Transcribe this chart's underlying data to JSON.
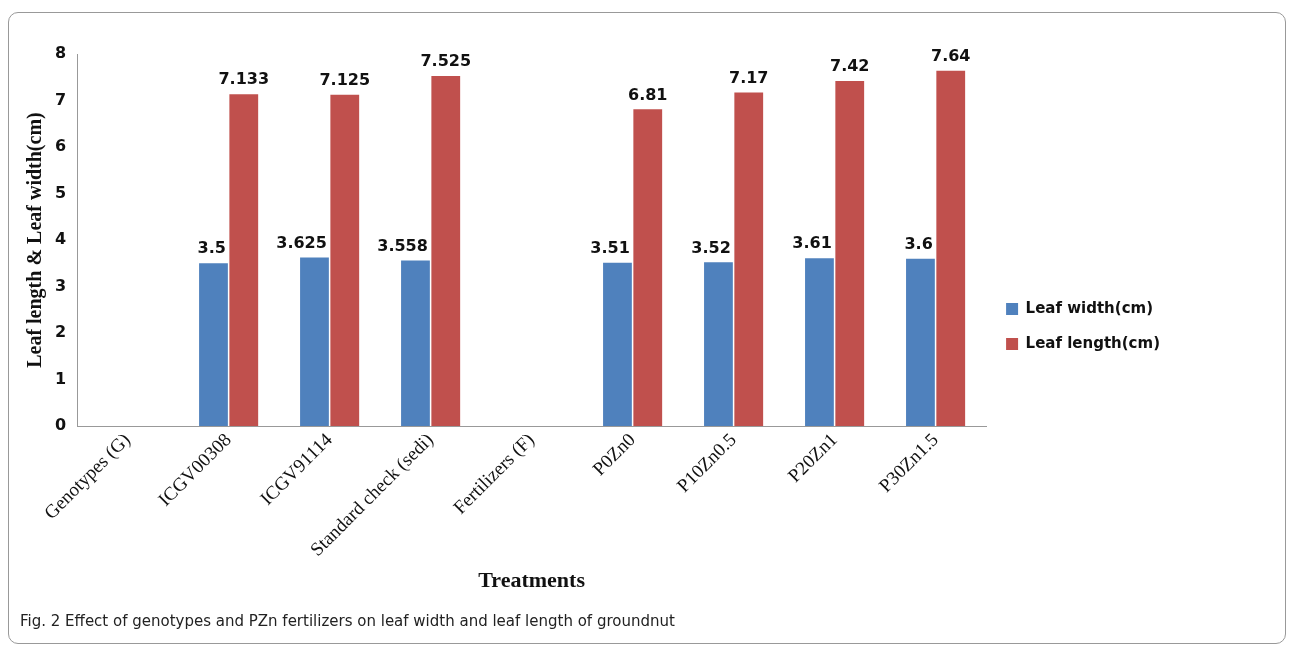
{
  "chart_data": {
    "type": "bar",
    "categories": [
      "Genotypes (G)",
      "ICGV00308",
      "ICGV91114",
      "Standard check (sedi)",
      "Fertilizers (F)",
      "P0Zn0",
      "P10Zn0.5",
      "P20Zn1",
      "P30Zn1.5"
    ],
    "series": [
      {
        "name": "Leaf width(cm)",
        "color": "#4f81bd",
        "values": [
          null,
          3.5,
          3.625,
          3.558,
          null,
          3.51,
          3.52,
          3.61,
          3.6
        ]
      },
      {
        "name": "Leaf length(cm)",
        "color": "#c0504d",
        "values": [
          null,
          7.133,
          7.125,
          7.525,
          null,
          6.81,
          7.17,
          7.42,
          7.64
        ]
      }
    ],
    "xlabel": "Treatments",
    "ylabel": "Leaf length & Leaf width(cm)",
    "ylim": [
      0,
      8
    ],
    "yticks": [
      0,
      1,
      2,
      3,
      4,
      5,
      6,
      7,
      8
    ],
    "grid": false,
    "legend": "right",
    "data_labels": true,
    "annotations": [
      "Fig. 2  Effect of genotypes and PZn fertilizers on leaf width and leaf length of groundnut"
    ]
  }
}
